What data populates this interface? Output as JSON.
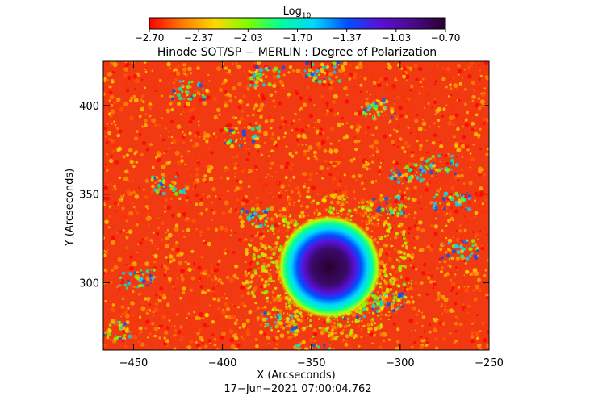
{
  "colorbar": {
    "label_main": "Log",
    "label_sub": "10",
    "ticks": [
      "−2.70",
      "−2.37",
      "−2.03",
      "−1.70",
      "−1.37",
      "−1.03",
      "−0.70"
    ],
    "vmin": -2.7,
    "vmax": -0.7,
    "colors": [
      "#ff0000",
      "#ff7a00",
      "#ffd800",
      "#7cff00",
      "#00ff9a",
      "#00d8ff",
      "#0050ff",
      "#5a10d8",
      "#4a0a8a",
      "#2a0030"
    ]
  },
  "title": "Hinode SOT/SP − MERLIN : Degree of Polarization",
  "xaxis": {
    "label": "X (Arcseconds)",
    "ticks": [
      "−450",
      "−400",
      "−350",
      "−300",
      "−250"
    ],
    "tick_values": [
      -450,
      -400,
      -350,
      -300,
      -250
    ],
    "range": [
      -467,
      -250
    ]
  },
  "yaxis": {
    "label": "Y (Arcseconds)",
    "ticks": [
      "300",
      "350",
      "400"
    ],
    "tick_values": [
      300,
      350,
      400
    ],
    "range": [
      262,
      425
    ]
  },
  "timestamp": "17−Jun−2021 07:00:04.762",
  "features": {
    "sunspot_center": {
      "x": -347,
      "y": 308
    },
    "background_log_dop": -2.6
  },
  "chart_data": {
    "type": "heatmap",
    "title": "Hinode SOT/SP − MERLIN : Degree of Polarization",
    "xlabel": "X (Arcseconds)",
    "ylabel": "Y (Arcseconds)",
    "xlim": [
      -467,
      -250
    ],
    "ylim": [
      262,
      425
    ],
    "colorbar_label": "Log10",
    "colorbar_range": [
      -2.7,
      -0.7
    ]
  }
}
